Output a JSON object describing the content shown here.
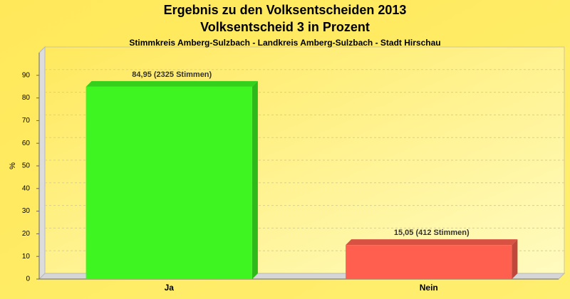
{
  "chart_data": {
    "type": "bar",
    "title": "Ergebnis zu den Volksentscheiden 2013",
    "subtitle": "Volksentscheid 3 in Prozent",
    "caption": "Stimmkreis Amberg-Sulzbach - Landkreis Amberg-Sulzbach - Stadt Hirschau",
    "y_label": "%",
    "categories": [
      "Ja",
      "Nein"
    ],
    "values": [
      84.95,
      15.05
    ],
    "value_labels": [
      "84,95 (2325 Stimmen)",
      "15,05 (412 Stimmen)"
    ],
    "colors": [
      "#3ef521",
      "#ff5f4f"
    ],
    "ylim": [
      0,
      100
    ],
    "yticks": [
      0,
      10,
      20,
      30,
      40,
      50,
      60,
      70,
      80,
      90
    ],
    "grid": true
  }
}
